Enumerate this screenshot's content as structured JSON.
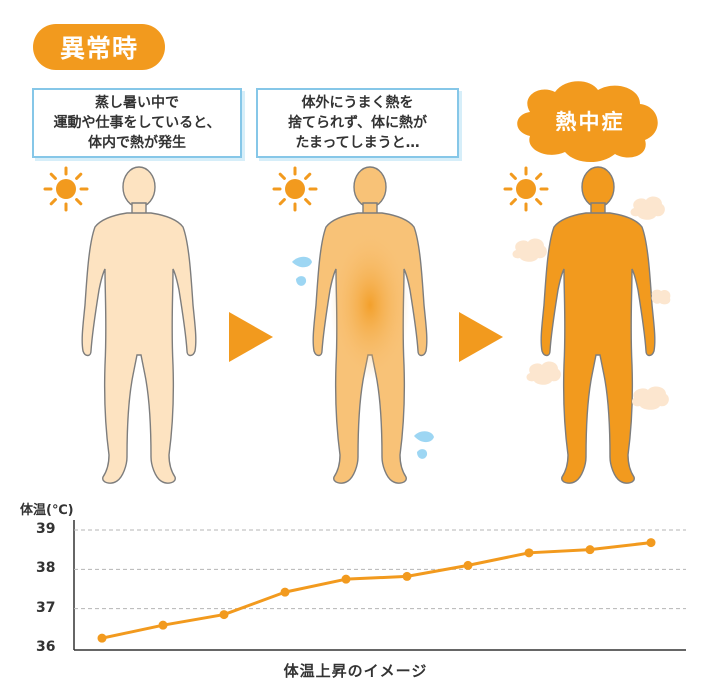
{
  "badge": {
    "label": "異常時"
  },
  "bubbles": [
    {
      "lines": [
        "蒸し暑い中で",
        "運動や仕事をしていると、",
        "体内で熱が発生"
      ]
    },
    {
      "lines": [
        "体外にうまく熱を",
        "捨てられず、体に熱が",
        "たまってしまうと…"
      ]
    }
  ],
  "cloud": {
    "label": "熱中症"
  },
  "colors": {
    "accent": "#f29a1e",
    "figure_light": "#fde3c1",
    "figure_mid": "#f8c277",
    "figure_dark": "#f29a1e",
    "bubble_border": "#86c7e8",
    "sweat": "#9dd6f3",
    "heat_puff": "#fce6cf"
  },
  "icons": [
    "sun-icon",
    "arrow-right-icon",
    "sweat-drop-icon",
    "heat-puff-icon",
    "cloud-icon"
  ],
  "chart_data": {
    "type": "line",
    "ylabel": "体温(℃)",
    "xlabel": "体温上昇のイメージ",
    "ylim": [
      36,
      39
    ],
    "yticks": [
      36,
      37,
      38,
      39
    ],
    "grid": true,
    "values": [
      36.25,
      36.58,
      36.85,
      37.42,
      37.75,
      37.82,
      38.1,
      38.42,
      38.5,
      38.68
    ]
  }
}
